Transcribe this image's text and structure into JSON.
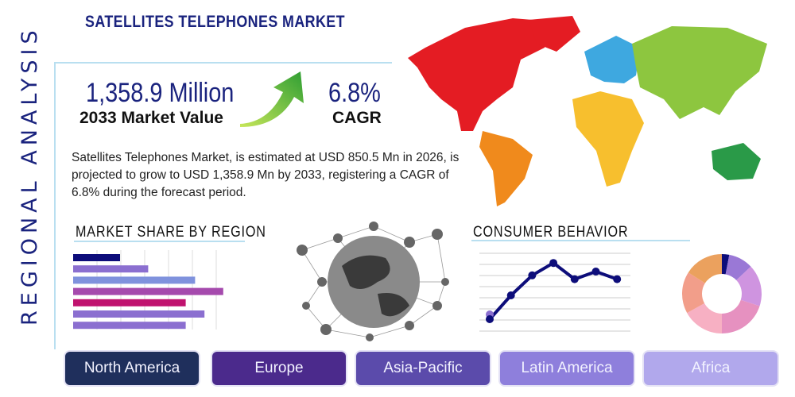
{
  "title": "SATELLITES TELEPHONES MARKET",
  "side_label": "REGIONAL ANALYSIS",
  "market_value": {
    "value": "1,358.9 Million",
    "label": "2033 Market Value"
  },
  "cagr": {
    "value": "6.8%",
    "label": "CAGR"
  },
  "description": "Satellites Telephones Market, is estimated at USD 850.5 Mn in 2026, is projected to grow to USD 1,358.9 Mn by 2033, registering a CAGR of 6.8% during the forecast period.",
  "sections": {
    "market_share": "MARKET SHARE BY REGION",
    "consumer": "CONSUMER BEHAVIOR"
  },
  "regions": [
    {
      "label": "North America",
      "color": "#1f2f5c"
    },
    {
      "label": "Europe",
      "color": "#4b2a8c"
    },
    {
      "label": "Asia-Pacific",
      "color": "#5b4bab"
    },
    {
      "label": "Latin America",
      "color": "#8e7fdc"
    },
    {
      "label": "Africa",
      "color": "#b1a8ec"
    }
  ],
  "chart_data": [
    {
      "type": "bar",
      "orientation": "horizontal",
      "values": [
        2,
        3.2,
        5.2,
        6.4,
        4.8,
        5.6,
        4.8
      ],
      "colors": [
        "#0d0d7a",
        "#8b6fd0",
        "#7f92dd",
        "#a54aad",
        "#c0136f",
        "#8b6fd0",
        "#8b6fd0"
      ],
      "grid": true
    },
    {
      "type": "line",
      "values": [
        1,
        3.5,
        5.6,
        6.9,
        5.2,
        6.0,
        5.2
      ],
      "color": "#0d0d7a",
      "grid": true
    },
    {
      "type": "pie",
      "donut": true,
      "values": [
        3,
        10,
        17,
        20,
        17,
        17,
        16
      ],
      "colors": [
        "#0d0d7a",
        "#9a78d6",
        "#cf94e0",
        "#e691c0",
        "#f7b0c3",
        "#f29e8a",
        "#eba15e"
      ]
    }
  ]
}
